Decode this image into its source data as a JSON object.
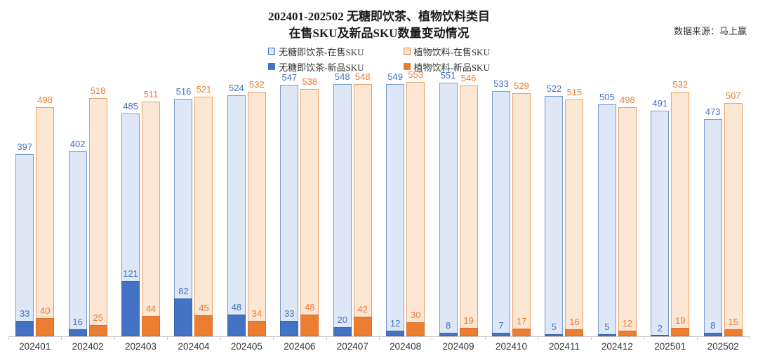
{
  "title": {
    "line1": "202401-202502 无糖即饮茶、植物饮料类目",
    "line2": "在售SKU及新品SKU数量变动情况"
  },
  "source": "数据来源：马上赢",
  "legend": [
    {
      "label": "无糖即饮茶-在售SKU",
      "fill": "#dde7f6",
      "border": "#4472c4"
    },
    {
      "label": "植物饮料-在售SKU",
      "fill": "#fce6d4",
      "border": "#ed7d31"
    },
    {
      "label": "无糖即饮茶-新品SKU",
      "fill": "#4472c4",
      "border": "#4472c4"
    },
    {
      "label": "植物饮料-新品SKU",
      "fill": "#ed7d31",
      "border": "#ed7d31"
    }
  ],
  "colors": {
    "tea_light": "#dde7f6",
    "tea_dark": "#4472c4",
    "plant_light": "#fce6d4",
    "plant_dark": "#ed7d31",
    "axis": "#c9c9c9",
    "tea_label": "#4472c4",
    "plant_label": "#ed7d31"
  },
  "chart_data": {
    "type": "bar",
    "title": "202401-202502 无糖即饮茶、植物饮料类目 在售SKU及新品SKU数量变动情况",
    "xlabel": "",
    "ylabel": "",
    "ylim": [
      0,
      570
    ],
    "grid": false,
    "legend_position": "top",
    "categories": [
      "202401",
      "202402",
      "202403",
      "202404",
      "202405",
      "202406",
      "202407",
      "202408",
      "202409",
      "202410",
      "202411",
      "202412",
      "202501",
      "202502"
    ],
    "series": [
      {
        "name": "无糖即饮茶-在售SKU",
        "values": [
          397,
          402,
          485,
          516,
          524,
          547,
          548,
          549,
          551,
          533,
          522,
          505,
          491,
          473
        ]
      },
      {
        "name": "植物饮料-在售SKU",
        "values": [
          498,
          518,
          511,
          521,
          532,
          538,
          548,
          553,
          546,
          529,
          515,
          498,
          532,
          507
        ]
      },
      {
        "name": "无糖即饮茶-新品SKU",
        "values": [
          33,
          16,
          121,
          82,
          48,
          33,
          20,
          12,
          8,
          7,
          5,
          5,
          2,
          8
        ]
      },
      {
        "name": "植物饮料-新品SKU",
        "values": [
          40,
          25,
          44,
          45,
          34,
          48,
          42,
          30,
          19,
          17,
          16,
          12,
          19,
          15
        ]
      }
    ]
  }
}
